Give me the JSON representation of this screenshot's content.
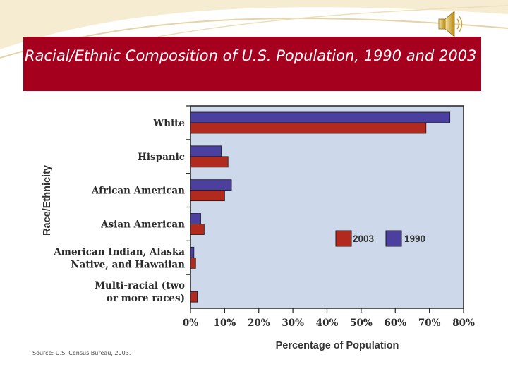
{
  "slide": {
    "title": "Racial/Ethnic Composition of U.S. Population, 1990 and 2003",
    "source": "Source: U.S. Census Bureau, 2003."
  },
  "icons": {
    "speaker": "speaker-icon"
  },
  "colors": {
    "title_bar": "#a6001f",
    "plot_bg": "#cdd9ea",
    "series_2003": "#b22a1e",
    "series_1990": "#4b3fa0"
  },
  "chart_data": {
    "type": "bar",
    "orientation": "horizontal",
    "title": "",
    "xlabel": "Percentage of Population",
    "ylabel": "Race/Ethnicity",
    "categories": [
      "White",
      "Hispanic",
      "African American",
      "Asian American",
      "American Indian, Alaska Native, and Hawaiian",
      "Multi-racial (two or more races)"
    ],
    "category_lines": [
      [
        "White"
      ],
      [
        "Hispanic"
      ],
      [
        "African American"
      ],
      [
        "Asian American"
      ],
      [
        "American Indian, Alaska",
        "Native, and Hawaiian"
      ],
      [
        "Multi-racial (two",
        "or more races)"
      ]
    ],
    "series": [
      {
        "name": "1990",
        "color": "#4b3fa0",
        "values": [
          76,
          9,
          12,
          3,
          1,
          null
        ]
      },
      {
        "name": "2003",
        "color": "#b22a1e",
        "values": [
          69,
          11,
          10,
          4,
          1.5,
          2
        ]
      }
    ],
    "xlim": [
      0,
      80
    ],
    "xticks": [
      0,
      10,
      20,
      30,
      40,
      50,
      60,
      70,
      80
    ],
    "xtick_labels": [
      "0%",
      "10%",
      "20%",
      "30%",
      "40%",
      "50%",
      "60%",
      "70%",
      "80%"
    ],
    "legend": {
      "placement": "inside-right",
      "entries": [
        "2003",
        "1990"
      ]
    },
    "grid": false
  }
}
